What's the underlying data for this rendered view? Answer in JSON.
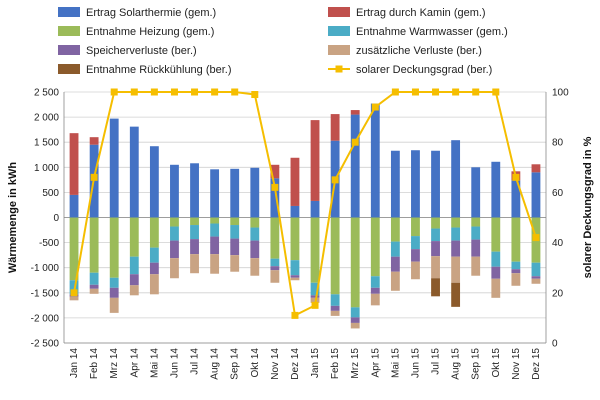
{
  "chart_data": {
    "type": "bar",
    "title": "",
    "categories": [
      "Jan 14",
      "Feb 14",
      "Mrz 14",
      "Apr 14",
      "Mai 14",
      "Jun 14",
      "Jul 14",
      "Aug 14",
      "Sep 14",
      "Okt 14",
      "Nov 14",
      "Dez 14",
      "Jan 15",
      "Feb 15",
      "Mrz 15",
      "Apr 15",
      "Mai 15",
      "Jun 15",
      "Jul 15",
      "Aug 15",
      "Sep 15",
      "Okt 15",
      "Nov 15",
      "Dez 15"
    ],
    "ylabel": "Wärmemenge in kWh",
    "ylim": [
      -2500,
      2500
    ],
    "yticks": [
      "2 500",
      "2 000",
      "1 500",
      "1 000",
      "500",
      "0",
      "-500",
      "-1 000",
      "-1 500",
      "-2 000",
      "-2 500"
    ],
    "y2label": "solarer Deckungsgrad in %",
    "y2lim": [
      0,
      100
    ],
    "y2ticks": [
      "100",
      "80",
      "60",
      "40",
      "20",
      "0"
    ],
    "grid": true,
    "legend_position": "top",
    "series": [
      {
        "name": "Ertrag Solarthermie (gem.)",
        "color": "#4472C4",
        "sign": "positive",
        "values": [
          450,
          1450,
          1970,
          1810,
          1420,
          1050,
          1080,
          960,
          970,
          990,
          780,
          230,
          330,
          1530,
          2050,
          2270,
          1330,
          1340,
          1330,
          1540,
          1000,
          1110,
          740,
          900
        ]
      },
      {
        "name": "Ertrag durch Kamin (gem.)",
        "color": "#C0504D",
        "sign": "positive",
        "values": [
          1230,
          150,
          0,
          0,
          0,
          0,
          0,
          0,
          0,
          0,
          270,
          960,
          1610,
          530,
          90,
          0,
          0,
          0,
          0,
          0,
          0,
          0,
          180,
          160
        ]
      },
      {
        "name": "Entnahme Heizung (gem.)",
        "color": "#9BBB59",
        "sign": "negative",
        "values": [
          -1250,
          -1100,
          -1200,
          -780,
          -600,
          -180,
          -150,
          -120,
          -150,
          -200,
          -820,
          -850,
          -1300,
          -1530,
          -1790,
          -1170,
          -480,
          -370,
          -220,
          -200,
          -180,
          -680,
          -880,
          -900
        ]
      },
      {
        "name": "Entnahme Warmwasser (gem.)",
        "color": "#4BACC6",
        "sign": "negative",
        "values": [
          -280,
          -240,
          -200,
          -350,
          -300,
          -280,
          -280,
          -260,
          -270,
          -260,
          -150,
          -300,
          -250,
          -230,
          -200,
          -230,
          -300,
          -260,
          -250,
          -260,
          -260,
          -300,
          -150,
          -270
        ]
      },
      {
        "name": "Speicherverluste (ber.)",
        "color": "#8064A2",
        "sign": "negative",
        "values": [
          -50,
          -80,
          -200,
          -220,
          -230,
          -350,
          -300,
          -350,
          -330,
          -350,
          -80,
          -50,
          -50,
          -100,
          -110,
          -120,
          -300,
          -250,
          -300,
          -320,
          -340,
          -240,
          -80,
          -50
        ]
      },
      {
        "name": "zusätzliche Verluste (ber.)",
        "color": "#C9A383",
        "sign": "negative",
        "values": [
          -70,
          -100,
          -300,
          -200,
          -400,
          -400,
          -380,
          -390,
          -330,
          -350,
          -250,
          -50,
          -100,
          -100,
          -110,
          -230,
          -380,
          -350,
          -440,
          -520,
          -380,
          -380,
          -250,
          -100
        ]
      },
      {
        "name": "Entnahme Rückkühlung (ber.)",
        "color": "#8B5A2B",
        "sign": "negative",
        "values": [
          0,
          0,
          0,
          0,
          0,
          0,
          0,
          0,
          0,
          0,
          0,
          0,
          0,
          0,
          0,
          0,
          0,
          0,
          -360,
          -480,
          0,
          0,
          0,
          0
        ]
      },
      {
        "name": "solarer Deckungsgrad (ber.)",
        "color": "#F5BE00",
        "type": "line",
        "axis": "y2",
        "values": [
          20,
          66,
          100,
          100,
          100,
          100,
          100,
          100,
          100,
          99,
          62,
          11,
          15,
          65,
          80,
          94,
          100,
          100,
          100,
          100,
          100,
          100,
          66,
          42
        ]
      }
    ]
  }
}
